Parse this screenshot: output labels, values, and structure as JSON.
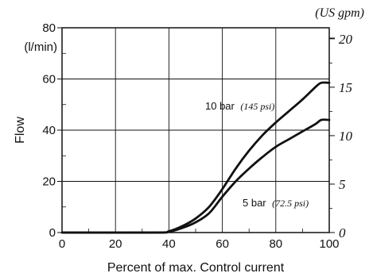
{
  "chart_data": {
    "type": "line",
    "xlabel": "Percent of max. Control current",
    "ylabel": "Flow",
    "y_unit_left": "(l/min)",
    "y_unit_right": "(US gpm)",
    "xlim": [
      0,
      100
    ],
    "ylim": [
      0,
      80
    ],
    "x_ticks": [
      "0",
      "20",
      "40",
      "60",
      "80",
      "100"
    ],
    "y_ticks_left": [
      "0",
      "20",
      "40",
      "60",
      "80"
    ],
    "y_ticks_right": [
      "0",
      "5",
      "10",
      "15",
      "20"
    ],
    "grid": true,
    "series": [
      {
        "name": "10 bar",
        "annotation": "(145 psi)",
        "x": [
          0,
          35,
          40,
          45,
          50,
          55,
          60,
          65,
          70,
          75,
          80,
          85,
          90,
          95,
          97,
          100
        ],
        "y": [
          0,
          0,
          0.5,
          2.5,
          5.5,
          10,
          17,
          25,
          32,
          38,
          43,
          47.5,
          52,
          57,
          58.5,
          58.5
        ]
      },
      {
        "name": "5 bar",
        "annotation": "(72.5 psi)",
        "x": [
          0,
          35,
          40,
          45,
          50,
          55,
          60,
          65,
          70,
          75,
          80,
          85,
          90,
          95,
          97,
          100
        ],
        "y": [
          0,
          0,
          0.3,
          1.8,
          4,
          7.5,
          14,
          20,
          25,
          29.5,
          33.5,
          36.5,
          39.5,
          42.5,
          44,
          44
        ]
      }
    ]
  }
}
